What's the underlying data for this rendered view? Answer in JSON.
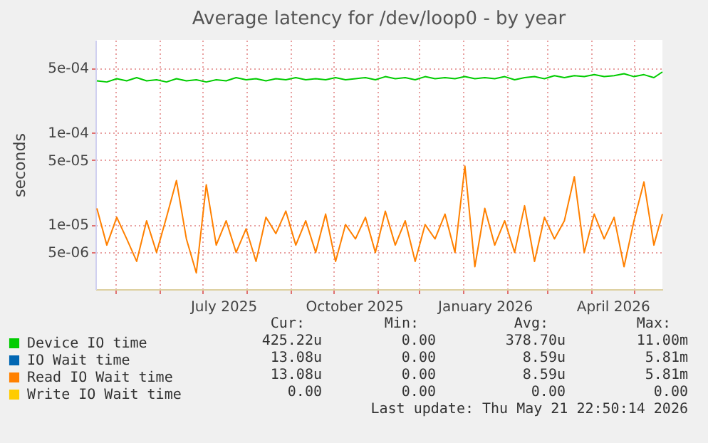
{
  "chart_data": {
    "type": "line",
    "title": "Average latency for /dev/loop0 - by year",
    "ylabel": "seconds",
    "x": [
      "2025-04-18",
      "2025-04-25",
      "2025-05-02",
      "2025-05-09",
      "2025-05-16",
      "2025-05-23",
      "2025-05-30",
      "2025-06-06",
      "2025-06-13",
      "2025-06-20",
      "2025-06-27",
      "2025-07-04",
      "2025-07-11",
      "2025-07-18",
      "2025-07-25",
      "2025-08-01",
      "2025-08-08",
      "2025-08-15",
      "2025-08-22",
      "2025-08-29",
      "2025-09-05",
      "2025-09-12",
      "2025-09-19",
      "2025-09-26",
      "2025-10-03",
      "2025-10-10",
      "2025-10-17",
      "2025-10-24",
      "2025-10-31",
      "2025-11-07",
      "2025-11-14",
      "2025-11-21",
      "2025-11-28",
      "2025-12-05",
      "2025-12-12",
      "2025-12-19",
      "2025-12-26",
      "2026-01-02",
      "2026-01-09",
      "2026-01-16",
      "2026-01-23",
      "2026-01-30",
      "2026-02-06",
      "2026-02-13",
      "2026-02-20",
      "2026-02-27",
      "2026-03-06",
      "2026-03-13",
      "2026-03-20",
      "2026-03-27",
      "2026-04-03",
      "2026-04-10",
      "2026-04-17",
      "2026-04-24",
      "2026-05-01",
      "2026-05-08",
      "2026-05-15",
      "2026-05-21"
    ],
    "series": [
      {
        "name": "Device IO time",
        "color": "#00cc00",
        "values": [
          0.00036,
          0.00035,
          0.00038,
          0.00036,
          0.00039,
          0.00036,
          0.00037,
          0.00035,
          0.00038,
          0.00036,
          0.00037,
          0.00035,
          0.00037,
          0.00036,
          0.00039,
          0.00037,
          0.00038,
          0.00036,
          0.00038,
          0.00037,
          0.00039,
          0.00037,
          0.00038,
          0.00037,
          0.00039,
          0.00037,
          0.00038,
          0.00039,
          0.00037,
          0.0004,
          0.00038,
          0.00039,
          0.00037,
          0.0004,
          0.00038,
          0.00039,
          0.00038,
          0.0004,
          0.00038,
          0.00039,
          0.00038,
          0.0004,
          0.00037,
          0.00039,
          0.0004,
          0.00038,
          0.00041,
          0.00039,
          0.00041,
          0.0004,
          0.00042,
          0.0004,
          0.00041,
          0.00043,
          0.0004,
          0.00042,
          0.00039,
          0.00045
        ]
      },
      {
        "name": "IO Wait time",
        "color": "#0066b3",
        "values": [
          null,
          null,
          null,
          null,
          null,
          null,
          null,
          null,
          null,
          null,
          null,
          null,
          null,
          null,
          null,
          null,
          null,
          null,
          null,
          null,
          null,
          null,
          null,
          null,
          null,
          null,
          null,
          null,
          null,
          null,
          null,
          null,
          null,
          null,
          null,
          null,
          null,
          null,
          null,
          null,
          null,
          null,
          null,
          null,
          null,
          null,
          null,
          null,
          null,
          null,
          null,
          null,
          null,
          null,
          null,
          null,
          null,
          null
        ]
      },
      {
        "name": "Read IO Wait time",
        "color": "#ff8000",
        "values": [
          1.5e-05,
          6e-06,
          1.2e-05,
          7e-06,
          4e-06,
          1.1e-05,
          5e-06,
          1.2e-05,
          3e-05,
          7e-06,
          3e-06,
          2.7e-05,
          6e-06,
          1.1e-05,
          5e-06,
          9e-06,
          4e-06,
          1.2e-05,
          8e-06,
          1.4e-05,
          6e-06,
          1.1e-05,
          5e-06,
          1.3e-05,
          4e-06,
          1e-05,
          7e-06,
          1.2e-05,
          5e-06,
          1.4e-05,
          6e-06,
          1.1e-05,
          4e-06,
          1e-05,
          7e-06,
          1.3e-05,
          5e-06,
          4.3e-05,
          3.5e-06,
          1.5e-05,
          6e-06,
          1.1e-05,
          5e-06,
          1.6e-05,
          4e-06,
          1.2e-05,
          7e-06,
          1.1e-05,
          3.3e-05,
          5e-06,
          1.3e-05,
          7e-06,
          1.2e-05,
          3.5e-06,
          1.1e-05,
          2.9e-05,
          6e-06,
          1.3e-05
        ]
      },
      {
        "name": "Write IO Wait time",
        "color": "#ffcc00",
        "values": [
          null,
          null,
          null,
          null,
          null,
          null,
          null,
          null,
          null,
          null,
          null,
          null,
          null,
          null,
          null,
          null,
          null,
          null,
          null,
          null,
          null,
          null,
          null,
          null,
          null,
          null,
          null,
          null,
          null,
          null,
          null,
          null,
          null,
          null,
          null,
          null,
          null,
          null,
          null,
          null,
          null,
          null,
          null,
          null,
          null,
          null,
          null,
          null,
          null,
          null,
          null,
          null,
          null,
          null,
          null,
          null,
          null,
          null
        ]
      }
    ],
    "xlim": [
      "2025-04-17",
      "2026-05-21"
    ],
    "xticks": [
      {
        "value": "2025-05-01",
        "label": null
      },
      {
        "value": "2025-06-01",
        "label": null
      },
      {
        "value": "2025-07-01",
        "label": null
      },
      {
        "value": "2025-07-16",
        "label": "July 2025"
      },
      {
        "value": "2025-08-01",
        "label": null
      },
      {
        "value": "2025-09-01",
        "label": null
      },
      {
        "value": "2025-10-01",
        "label": null
      },
      {
        "value": "2025-10-16",
        "label": "October 2025"
      },
      {
        "value": "2025-11-01",
        "label": null
      },
      {
        "value": "2025-12-01",
        "label": null
      },
      {
        "value": "2026-01-01",
        "label": null
      },
      {
        "value": "2026-01-16",
        "label": "January 2026"
      },
      {
        "value": "2026-02-01",
        "label": null
      },
      {
        "value": "2026-03-01",
        "label": null
      },
      {
        "value": "2026-04-01",
        "label": null
      },
      {
        "value": "2026-04-16",
        "label": "April 2026"
      },
      {
        "value": "2026-05-01",
        "label": null
      }
    ],
    "ylim": [
      2e-06,
      0.001
    ],
    "yticks": [
      {
        "value": 5e-06,
        "label": "5e-06"
      },
      {
        "value": 1e-05,
        "label": "1e-05"
      },
      {
        "value": 5e-05,
        "label": "5e-05"
      },
      {
        "value": 0.0001,
        "label": "1e-04"
      },
      {
        "value": 0.0005,
        "label": "5e-04"
      }
    ],
    "log": true,
    "grid": true,
    "legend": "bottom left",
    "marker": "none",
    "line_style": "solid",
    "annotations": [
      "Cur:",
      "Min:",
      "Avg:",
      "Max:",
      "425.22u",
      "0.00",
      "378.70u",
      "11.00m",
      "13.08u",
      "0.00",
      "8.59u",
      "5.81m",
      "13.08u",
      "0.00",
      "8.59u",
      "5.81m",
      "0.00",
      "0.00",
      "0.00",
      "0.00",
      "Last update: Thu May 21 22:50:14 2026"
    ]
  }
}
